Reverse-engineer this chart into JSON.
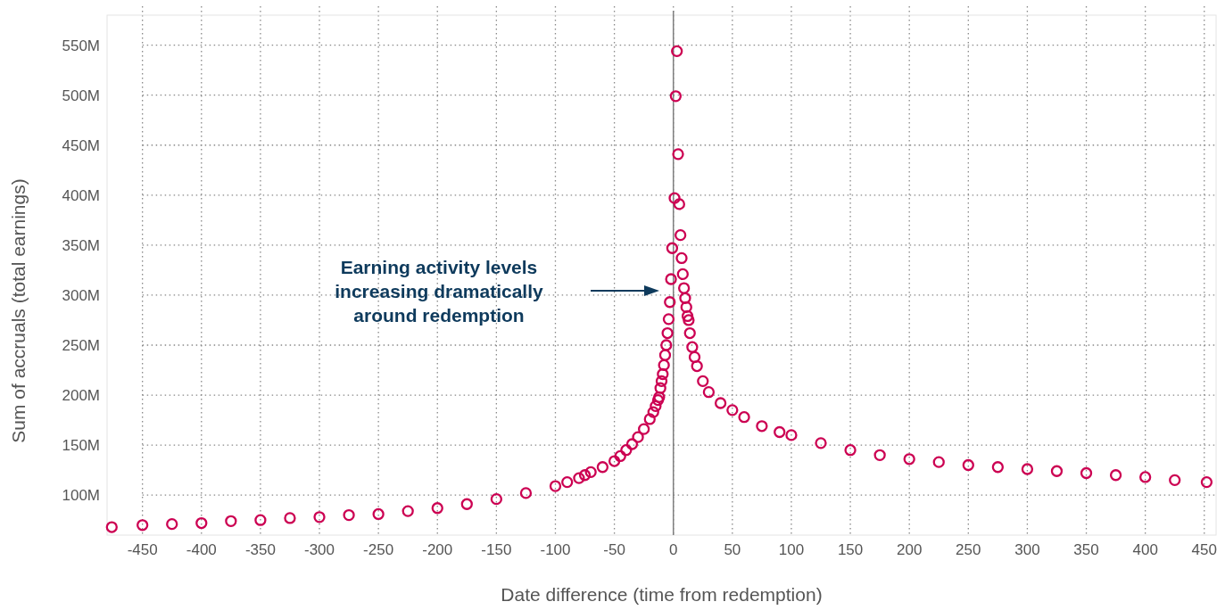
{
  "chart_data": {
    "type": "scatter",
    "xlabel": "Date difference (time from redemption)",
    "ylabel": "Sum of accruals (total earnings)",
    "annotations": [
      "Earning activity levels\nincreasing dramatically\naround redemption"
    ],
    "xlim": [
      -480,
      460
    ],
    "ylim": [
      60,
      580
    ],
    "xticks": [
      -450,
      -400,
      -350,
      -300,
      -250,
      -200,
      -150,
      -100,
      -50,
      0,
      50,
      100,
      150,
      200,
      250,
      300,
      350,
      400,
      450
    ],
    "yticks": [
      {
        "value": 100,
        "label": "100M"
      },
      {
        "value": 150,
        "label": "150M"
      },
      {
        "value": 200,
        "label": "200M"
      },
      {
        "value": 250,
        "label": "250M"
      },
      {
        "value": 300,
        "label": "300M"
      },
      {
        "value": 350,
        "label": "350M"
      },
      {
        "value": 400,
        "label": "400M"
      },
      {
        "value": 450,
        "label": "450M"
      },
      {
        "value": 500,
        "label": "500M"
      },
      {
        "value": 550,
        "label": "550M"
      }
    ],
    "grid": true,
    "marker": "circle",
    "ref_lines": [
      {
        "axis": "x",
        "value": 0,
        "color": "#7f7f7f"
      }
    ],
    "series": [
      {
        "color": "#cc0052",
        "x": [
          -476,
          -450,
          -425,
          -400,
          -375,
          -350,
          -325,
          -300,
          -275,
          -250,
          -225,
          -200,
          -175,
          -150,
          -125,
          -100,
          -90,
          -80,
          -75,
          -70,
          -60,
          -50,
          -45,
          -40,
          -35,
          -30,
          -25,
          -20,
          -17,
          -15,
          -13,
          -12,
          -11,
          -10,
          -9,
          -8,
          -7,
          -6,
          -5,
          -4,
          -3,
          -2,
          -1,
          1,
          2,
          3,
          4,
          5,
          6,
          7,
          8,
          9,
          10,
          11,
          12,
          13,
          14,
          16,
          18,
          20,
          25,
          30,
          40,
          50,
          60,
          75,
          90,
          100,
          125,
          150,
          175,
          200,
          225,
          250,
          275,
          300,
          325,
          350,
          375,
          400,
          425,
          452
        ],
        "values": [
          68,
          70,
          71,
          72,
          74,
          75,
          77,
          78,
          80,
          81,
          84,
          87,
          91,
          96,
          102,
          109,
          113,
          117,
          120,
          123,
          128,
          134,
          139,
          145,
          151,
          158,
          166,
          176,
          183,
          189,
          195,
          198,
          207,
          214,
          221,
          230,
          240,
          250,
          262,
          276,
          293,
          316,
          347,
          397,
          499,
          544,
          441,
          391,
          360,
          337,
          321,
          307,
          297,
          288,
          279,
          275,
          262,
          248,
          238,
          229,
          214,
          203,
          192,
          185,
          178,
          169,
          163,
          160,
          152,
          145,
          140,
          136,
          133,
          130,
          128,
          126,
          124,
          122,
          120,
          118,
          115,
          113
        ]
      }
    ]
  }
}
